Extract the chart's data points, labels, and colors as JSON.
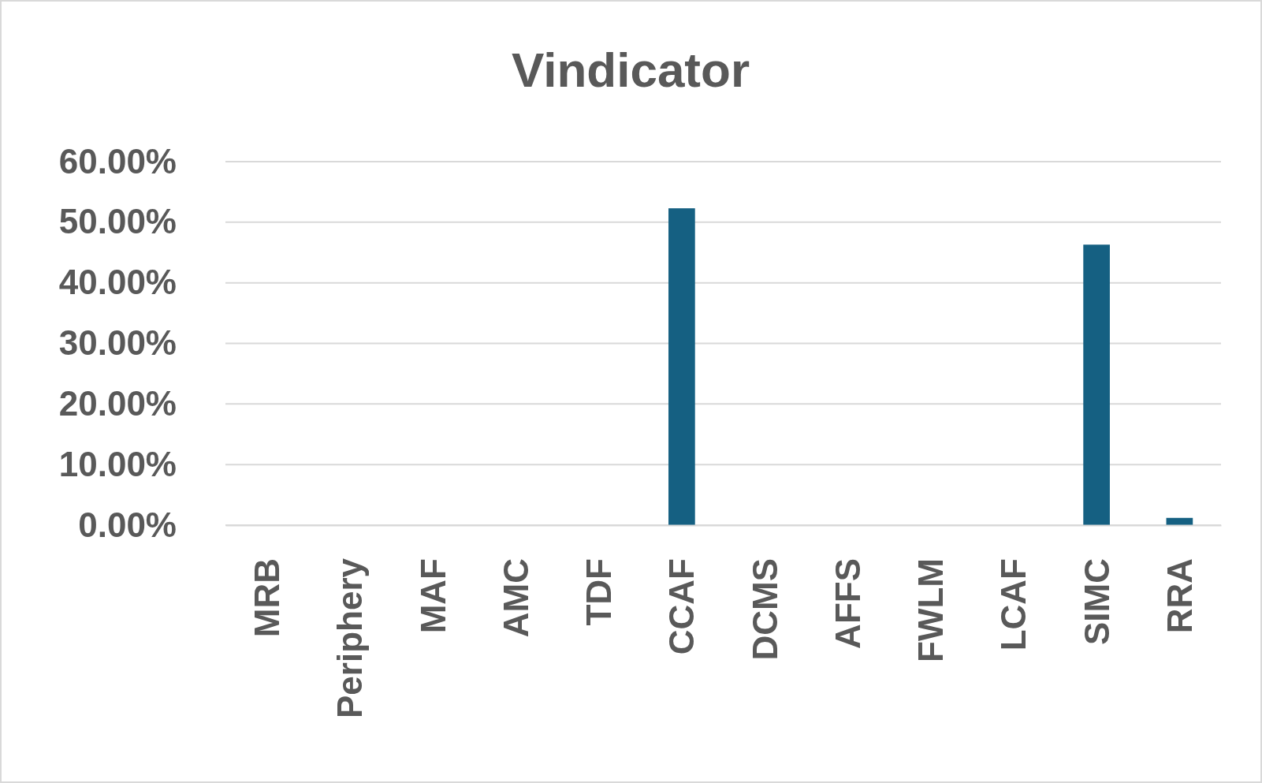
{
  "chart_data": {
    "type": "bar",
    "title": "Vindicator",
    "categories": [
      "MRB",
      "Periphery",
      "MAF",
      "AMC",
      "TDF",
      "CCAF",
      "DCMS",
      "AFFS",
      "FWLM",
      "LCAF",
      "SIMC",
      "RRA"
    ],
    "values": [
      0,
      0,
      0,
      0,
      0,
      52.3,
      0,
      0,
      0,
      0,
      46.3,
      1.2
    ],
    "color": "#156082",
    "ylim": [
      0,
      60
    ],
    "yticks": [
      {
        "value": 0,
        "label": "0.00%"
      },
      {
        "value": 10,
        "label": "10.00%"
      },
      {
        "value": 20,
        "label": "20.00%"
      },
      {
        "value": 30,
        "label": "30.00%"
      },
      {
        "value": 40,
        "label": "40.00%"
      },
      {
        "value": 50,
        "label": "50.00%"
      },
      {
        "value": 60,
        "label": "60.00%"
      }
    ],
    "grid": "y"
  }
}
